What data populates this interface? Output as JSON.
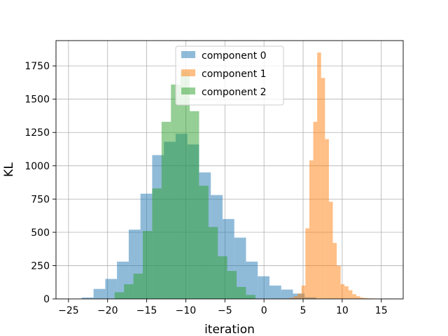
{
  "chart_data": {
    "type": "histogram",
    "xlabel": "iteration",
    "ylabel": "KL",
    "xlim": [
      -26.6,
      17.8
    ],
    "ylim": [
      0,
      1940
    ],
    "xticks": [
      -25,
      -20,
      -15,
      -10,
      -5,
      0,
      5,
      10,
      15
    ],
    "xtick_labels": [
      "−25",
      "−20",
      "−15",
      "−10",
      "−5",
      "0",
      "5",
      "10",
      "15"
    ],
    "yticks": [
      0,
      250,
      500,
      750,
      1000,
      1250,
      1500,
      1750
    ],
    "ytick_labels": [
      "0",
      "250",
      "500",
      "750",
      "1000",
      "1250",
      "1500",
      "1750"
    ],
    "grid": true,
    "legend_position": "top-center",
    "series": [
      {
        "name": "component 0",
        "color": "#1f77b4",
        "alpha": 0.5,
        "bin_edges": [
          -23.3,
          -21.8,
          -20.3,
          -18.8,
          -17.3,
          -15.8,
          -14.3,
          -12.8,
          -11.3,
          -9.8,
          -8.3,
          -6.8,
          -5.3,
          -3.8,
          -2.3,
          -0.8,
          0.7,
          2.2,
          3.7,
          5.2,
          6.7
        ],
        "counts": [
          10,
          75,
          150,
          280,
          520,
          790,
          1080,
          1180,
          1240,
          1160,
          950,
          780,
          600,
          460,
          280,
          170,
          100,
          70,
          40,
          12
        ]
      },
      {
        "name": "component 1",
        "color": "#ff7f0e",
        "alpha": 0.5,
        "bin_edges": [
          2.8,
          3.3,
          3.8,
          4.3,
          4.8,
          5.3,
          5.8,
          6.3,
          6.8,
          7.3,
          7.8,
          8.3,
          8.8,
          9.3,
          9.8,
          10.3,
          10.8,
          11.3,
          11.8,
          12.3,
          12.8,
          13.3,
          13.8,
          14.3,
          14.8,
          15.3,
          15.8,
          16.3
        ],
        "counts": [
          3,
          8,
          20,
          40,
          100,
          530,
          1040,
          1330,
          1850,
          1660,
          1200,
          730,
          420,
          250,
          110,
          95,
          65,
          35,
          20,
          10,
          6,
          4,
          3,
          2,
          2,
          1,
          1
        ]
      },
      {
        "name": "component 2",
        "color": "#2ca02c",
        "alpha": 0.5,
        "bin_edges": [
          -19.1,
          -17.9,
          -16.7,
          -15.5,
          -14.3,
          -13.1,
          -11.9,
          -10.7,
          -9.5,
          -8.3,
          -7.1,
          -5.9,
          -4.7,
          -3.5,
          -2.3,
          -1.1
        ],
        "counts": [
          50,
          110,
          190,
          510,
          830,
          1330,
          1610,
          1710,
          1410,
          850,
          540,
          320,
          210,
          90,
          30
        ]
      }
    ]
  }
}
